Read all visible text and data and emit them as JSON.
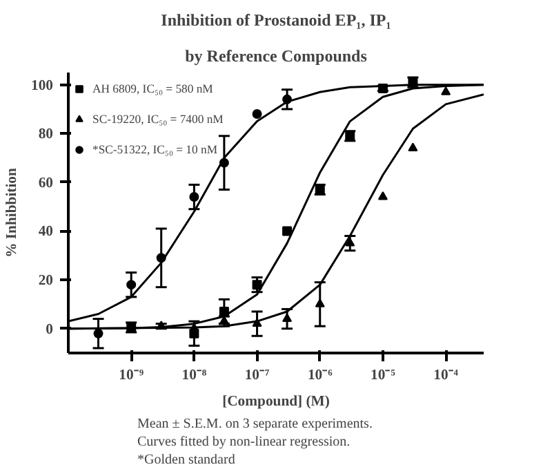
{
  "chart_data": {
    "type": "scatter",
    "title": "Inhibition of Prostanoid EP₁, IP₁",
    "subtitle": "by Reference Compounds",
    "xlabel": "[Compound] (M)",
    "ylabel": "% Inhibbition",
    "log": "x",
    "xlim": [
      1e-10,
      0.0004
    ],
    "xticks": [
      {
        "value": 1e-09,
        "label": "10⁻⁹"
      },
      {
        "value": 1e-08,
        "label": "10⁻⁸"
      },
      {
        "value": 1e-07,
        "label": "10⁻⁷"
      },
      {
        "value": 1e-06,
        "label": "10⁻⁶"
      },
      {
        "value": 1e-05,
        "label": "10⁻⁵"
      },
      {
        "value": 0.0001,
        "label": "10⁻⁴"
      }
    ],
    "ylim": [
      -10,
      105
    ],
    "yticks": [
      0,
      20,
      40,
      60,
      80,
      100
    ],
    "grid": false,
    "legend": "top left",
    "series": [
      {
        "name": "AH 6809, IC₅₀ = 580 nM",
        "marker": "square",
        "color": "#000000",
        "x": [
          1e-09,
          1e-08,
          3e-08,
          1e-07,
          3e-07,
          1e-06,
          3e-06,
          1e-05,
          3e-05
        ],
        "values": [
          0.5,
          -2,
          7,
          18,
          40,
          57,
          79,
          98.5,
          101
        ],
        "errors": [
          2,
          5,
          5,
          3,
          null,
          2,
          2,
          1,
          2
        ]
      },
      {
        "name": "SC-19220, IC₅₀ = 7400 nM",
        "marker": "triangle",
        "color": "#000000",
        "x": [
          3e-09,
          1e-08,
          3e-08,
          1e-07,
          3e-07,
          1e-06,
          3e-06,
          1e-05,
          3e-05,
          0.0001
        ],
        "values": [
          1,
          0,
          3,
          2,
          4,
          10,
          35,
          54,
          74,
          97
        ],
        "errors": [
          1,
          null,
          2,
          5,
          4,
          9,
          3,
          null,
          null,
          null
        ]
      },
      {
        "name": "*SC-51322, IC₅₀ = 10 nM",
        "marker": "circle",
        "color": "#000000",
        "x": [
          3e-10,
          1e-09,
          3e-09,
          1e-08,
          3e-08,
          1e-07,
          3e-07
        ],
        "values": [
          -2,
          18,
          29,
          54,
          68,
          88,
          94
        ],
        "errors": [
          6,
          5,
          12,
          5,
          11,
          null,
          4
        ]
      },
      {
        "type": "line",
        "color": "#000000",
        "x": [
          1e-10,
          1e-09,
          3e-09,
          1e-08,
          3e-08,
          1e-07,
          3e-07,
          1e-06,
          3e-06,
          1e-05,
          3e-05,
          0.0001,
          0.0004
        ],
        "values": [
          0,
          0.2,
          0.6,
          2,
          5,
          14,
          35,
          64,
          85,
          95,
          98.5,
          99.5,
          100
        ]
      },
      {
        "type": "line",
        "color": "#000000",
        "x": [
          1e-10,
          1e-08,
          3e-08,
          1e-07,
          3e-07,
          1e-06,
          3e-06,
          1e-05,
          3e-05,
          0.0001,
          0.0004
        ],
        "values": [
          0,
          0.5,
          1,
          3,
          7,
          18,
          38,
          63,
          82,
          92,
          96
        ]
      },
      {
        "type": "line",
        "color": "#000000",
        "x": [
          1e-10,
          3e-10,
          1e-09,
          3e-09,
          1e-08,
          3e-08,
          1e-07,
          3e-07,
          1e-06,
          3e-06,
          1e-05,
          3e-05,
          0.0004
        ],
        "values": [
          3,
          6,
          13,
          27,
          48,
          70,
          85,
          93,
          97,
          99,
          99.5,
          100,
          100
        ]
      }
    ],
    "annotations": [
      "Mean ± S.E.M. on 3 separate experiments.",
      "Curves fitted by non-linear regression.",
      "*Golden standard"
    ]
  }
}
